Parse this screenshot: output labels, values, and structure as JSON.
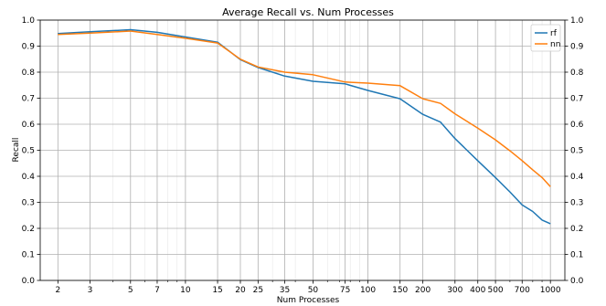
{
  "chart_data": {
    "type": "line",
    "title": "Average Recall vs. Num Processes",
    "xlabel": "Num Processes",
    "ylabel": "Recall",
    "xscale": "log",
    "xlim": [
      1.6,
      1200
    ],
    "ylim": [
      0.0,
      1.0
    ],
    "xticks": [
      2,
      3,
      5,
      7,
      10,
      15,
      20,
      25,
      35,
      50,
      75,
      100,
      150,
      200,
      300,
      400,
      500,
      700,
      1000
    ],
    "yticks": [
      "0.0",
      "0.1",
      "0.2",
      "0.3",
      "0.4",
      "0.5",
      "0.6",
      "0.7",
      "0.8",
      "0.9",
      "1.0"
    ],
    "grid": true,
    "right_axis_duplicate": true,
    "legend_position": "top-right",
    "x": [
      2,
      3,
      5,
      7,
      10,
      15,
      20,
      25,
      35,
      50,
      75,
      100,
      150,
      200,
      250,
      300,
      400,
      500,
      600,
      700,
      800,
      900,
      1000
    ],
    "series": [
      {
        "name": "rf",
        "color": "#1f77b4",
        "values": [
          0.948,
          0.955,
          0.963,
          0.953,
          0.935,
          0.915,
          0.848,
          0.818,
          0.785,
          0.765,
          0.755,
          0.73,
          0.698,
          0.638,
          0.608,
          0.545,
          0.46,
          0.395,
          0.34,
          0.29,
          0.265,
          0.232,
          0.218
        ]
      },
      {
        "name": "nn",
        "color": "#ff7f0e",
        "values": [
          0.945,
          0.95,
          0.958,
          0.945,
          0.93,
          0.912,
          0.85,
          0.82,
          0.8,
          0.79,
          0.762,
          0.758,
          0.748,
          0.698,
          0.68,
          0.64,
          0.585,
          0.54,
          0.498,
          0.46,
          0.425,
          0.395,
          0.36
        ]
      }
    ]
  }
}
